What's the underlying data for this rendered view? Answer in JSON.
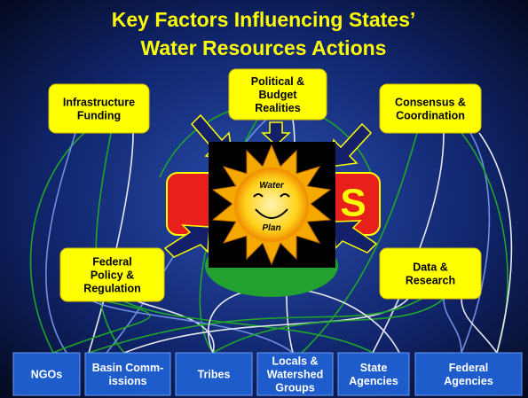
{
  "title": [
    "Key Factors Influencing States’",
    "Water Resources Actions"
  ],
  "factors": [
    {
      "lines": [
        "Infrastructure",
        "Funding"
      ]
    },
    {
      "lines": [
        "Political &",
        "Budget",
        "Realities"
      ]
    },
    {
      "lines": [
        "Consensus &",
        "Coordination"
      ]
    },
    {
      "lines": [
        "Federal",
        "Policy &",
        "Regulation"
      ]
    },
    {
      "lines": [
        "Data &",
        "Research"
      ]
    }
  ],
  "center": {
    "label": "S"
  },
  "sun": {
    "top": "Water",
    "bottom": "Plan"
  },
  "groups": [
    {
      "lines": [
        "NGOs"
      ]
    },
    {
      "lines": [
        "Basin Comm-",
        "issions"
      ]
    },
    {
      "lines": [
        "Tribes"
      ]
    },
    {
      "lines": [
        "Locals &",
        "Watershed",
        "Groups"
      ]
    },
    {
      "lines": [
        "State",
        "Agencies"
      ]
    },
    {
      "lines": [
        "Federal",
        "Agencies"
      ]
    }
  ]
}
